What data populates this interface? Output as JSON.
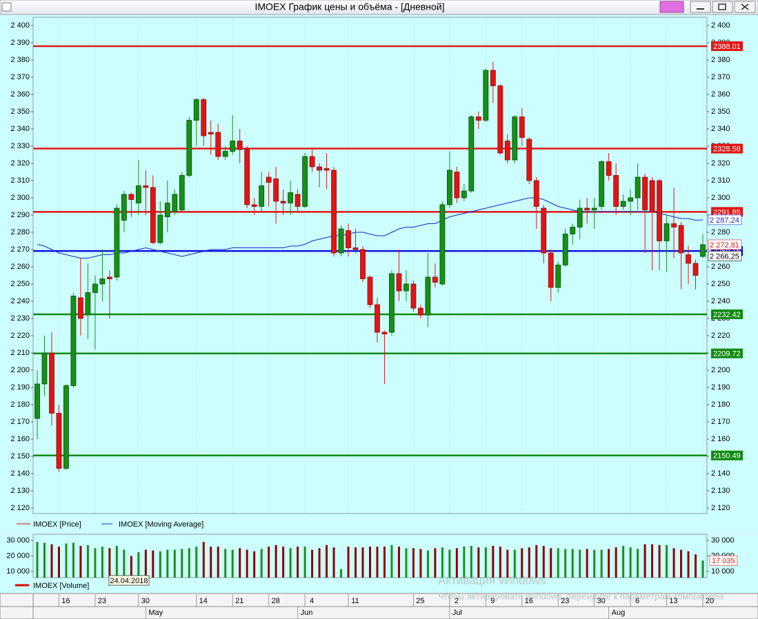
{
  "window_title": "IMOEX График цены и объёма - [Дневной]",
  "chart_data": [
    {
      "type": "candlestick",
      "categories": [
        null,
        null,
        null,
        "16",
        null,
        null,
        null,
        null,
        "23",
        null,
        null,
        null,
        null,
        null,
        "30",
        null,
        null,
        null,
        null,
        null,
        null,
        null,
        "14",
        null,
        null,
        null,
        null,
        "21",
        null,
        null,
        null,
        null,
        "28",
        null,
        null,
        null,
        null,
        "4",
        null,
        null,
        null,
        null,
        null,
        "11",
        null,
        null,
        null,
        null,
        null,
        null,
        null,
        null,
        "25",
        null,
        null,
        null,
        null,
        "2",
        null,
        null,
        null,
        null,
        "9",
        null,
        null,
        null,
        null,
        "16",
        null,
        null,
        null,
        null,
        "23",
        null,
        null,
        null,
        null,
        "30",
        null,
        null,
        null,
        null,
        "6",
        null,
        null,
        null,
        null,
        "13",
        null,
        null,
        null,
        null,
        "20"
      ],
      "months": [
        null,
        null,
        null,
        null,
        null,
        null,
        null,
        null,
        null,
        null,
        null,
        null,
        null,
        null,
        null,
        "May",
        null,
        null,
        null,
        null,
        null,
        null,
        null,
        null,
        null,
        null,
        null,
        null,
        null,
        null,
        null,
        null,
        null,
        null,
        null,
        null,
        "Jun",
        null,
        null,
        null,
        null,
        null,
        null,
        null,
        null,
        null,
        null,
        null,
        null,
        null,
        null,
        null,
        null,
        null,
        null,
        null,
        null,
        "Jul",
        null,
        null,
        null,
        null,
        null,
        null,
        null,
        null,
        null,
        null,
        null,
        null,
        null,
        null,
        null,
        null,
        null,
        null,
        null,
        null,
        null,
        "Aug",
        null,
        null,
        null,
        null,
        null,
        null,
        null,
        null,
        null,
        null,
        null,
        null,
        null
      ],
      "up_color": "#169016",
      "down_color": "#e41414",
      "series": [
        {
          "name": "IMOEX [Price]",
          "color": "#e00000",
          "open": [
            2172,
            2192,
            2210,
            2175,
            2143,
            2191,
            2242,
            2232,
            2245,
            2250,
            2254,
            2254,
            2287,
            2302,
            2297,
            2307,
            2306,
            2274,
            2289,
            2292,
            2293,
            2313,
            2345,
            2357,
            2338,
            2338,
            2324,
            2327,
            2333,
            2328,
            2296,
            2295,
            2312,
            2311,
            2298,
            2297,
            2302,
            2295,
            2324,
            2318,
            2317,
            2316,
            2268,
            2281,
            2271,
            2270,
            2254,
            2238,
            2222,
            2222,
            2256,
            2246,
            2250,
            2236,
            2232,
            2254,
            2250,
            2296,
            2315,
            2300,
            2304,
            2347,
            2345,
            2374,
            2365,
            2333,
            2322,
            2347,
            2334,
            2310,
            2294,
            2268,
            2248,
            2261,
            2279,
            2283,
            2294,
            2293,
            2295,
            2321,
            2313,
            2295,
            2298,
            2300,
            2312,
            2310,
            2310,
            2275,
            2285,
            2284,
            2267,
            2262,
            2266
          ],
          "high": [
            2200,
            2220,
            2222,
            2180,
            2192,
            2245,
            2265,
            2262,
            2255,
            2270,
            2258,
            2296,
            2304,
            2303,
            2322,
            2316,
            2313,
            2298,
            2310,
            2305,
            2315,
            2347,
            2358,
            2358,
            2345,
            2343,
            2330,
            2348,
            2340,
            2330,
            2300,
            2315,
            2315,
            2318,
            2305,
            2310,
            2305,
            2326,
            2328,
            2320,
            2326,
            2318,
            2284,
            2285,
            2282,
            2272,
            2255,
            2242,
            2223,
            2258,
            2270,
            2258,
            2252,
            2238,
            2268,
            2262,
            2298,
            2327,
            2318,
            2308,
            2348,
            2350,
            2375,
            2379,
            2366,
            2337,
            2348,
            2352,
            2335,
            2312,
            2296,
            2270,
            2263,
            2282,
            2285,
            2299,
            2300,
            2300,
            2322,
            2326,
            2320,
            2302,
            2305,
            2320,
            2314,
            2312,
            2311,
            2290,
            2306,
            2286,
            2272,
            2264,
            2279
          ],
          "low": [
            2160,
            2185,
            2168,
            2141,
            2142,
            2190,
            2220,
            2218,
            2212,
            2240,
            2230,
            2252,
            2280,
            2289,
            2290,
            2290,
            2273,
            2273,
            2280,
            2290,
            2292,
            2312,
            2330,
            2330,
            2325,
            2322,
            2322,
            2325,
            2320,
            2294,
            2290,
            2292,
            2295,
            2285,
            2290,
            2290,
            2292,
            2294,
            2315,
            2306,
            2305,
            2266,
            2266,
            2266,
            2268,
            2251,
            2236,
            2216,
            2192,
            2220,
            2240,
            2240,
            2234,
            2230,
            2225,
            2248,
            2249,
            2294,
            2297,
            2298,
            2303,
            2340,
            2344,
            2355,
            2325,
            2320,
            2320,
            2330,
            2308,
            2282,
            2262,
            2240,
            2245,
            2260,
            2273,
            2276,
            2285,
            2282,
            2293,
            2310,
            2290,
            2293,
            2290,
            2293,
            2268,
            2258,
            2258,
            2257,
            2265,
            2247,
            2250,
            2247,
            2265
          ],
          "close": [
            2192,
            2210,
            2175,
            2143,
            2191,
            2243,
            2230,
            2245,
            2250,
            2253,
            2253,
            2294,
            2302,
            2299,
            2307,
            2306,
            2274,
            2290,
            2297,
            2302,
            2313,
            2345,
            2357,
            2336,
            2337,
            2324,
            2327,
            2333,
            2328,
            2296,
            2295,
            2307,
            2309,
            2298,
            2297,
            2303,
            2295,
            2324,
            2318,
            2316,
            2316,
            2268,
            2282,
            2271,
            2270,
            2253,
            2238,
            2222,
            2221,
            2256,
            2246,
            2250,
            2236,
            2232,
            2254,
            2251,
            2296,
            2316,
            2300,
            2304,
            2347,
            2345,
            2374,
            2365,
            2326,
            2322,
            2347,
            2335,
            2310,
            2295,
            2268,
            2248,
            2261,
            2279,
            2283,
            2294,
            2293,
            2294,
            2321,
            2313,
            2295,
            2298,
            2300,
            2312,
            2293,
            2292,
            2275,
            2285,
            2283,
            2268,
            2262,
            2255,
            2272.81
          ]
        },
        {
          "name": "IMOEX [Moving Average]",
          "color": "#1428c8",
          "values": [
            2273,
            2272,
            2270,
            2268,
            2267,
            2266,
            2265,
            2265,
            2266,
            2267,
            2267,
            2268,
            2268,
            2269,
            2270,
            2271,
            2270,
            2269,
            2268,
            2267,
            2266,
            2267,
            2268,
            2269,
            2270,
            2270,
            2270,
            2271,
            2271,
            2271,
            2271,
            2271,
            2271,
            2271,
            2271,
            2272,
            2272,
            2273,
            2275,
            2276,
            2277,
            2278,
            2278,
            2279,
            2280,
            2280,
            2279,
            2278,
            2278,
            2280,
            2282,
            2283,
            2283,
            2284,
            2285,
            2285,
            2287,
            2289,
            2290,
            2291,
            2292,
            2293,
            2294,
            2295,
            2296,
            2297,
            2298,
            2299,
            2300,
            2300,
            2299,
            2297,
            2295,
            2294,
            2293,
            2292,
            2292,
            2292,
            2292,
            2292,
            2292,
            2292,
            2292,
            2292,
            2292,
            2292,
            2291,
            2290,
            2289,
            2288,
            2288,
            2287,
            2287.24
          ]
        }
      ],
      "levels": [
        {
          "value": 2388.01,
          "color": "#e41414"
        },
        {
          "value": 2328.58,
          "color": "#e41414"
        },
        {
          "value": 2291.85,
          "color": "#e41414"
        },
        {
          "value": 2269.15,
          "color": "#1010e0"
        },
        {
          "value": 2232.42,
          "color": "#108a10"
        },
        {
          "value": 2209.72,
          "color": "#108a10"
        },
        {
          "value": 2150.49,
          "color": "#108a10"
        }
      ],
      "markers": [
        {
          "value": 2287.24,
          "label": "2 287,24",
          "color": "#1428c8"
        },
        {
          "value": 2272.81,
          "label": "2 272,81",
          "color": "#e41414"
        },
        {
          "value": 2266.25,
          "label": "2 266,25",
          "color": "#000000"
        }
      ],
      "ylim": [
        2116.8,
        2404.8
      ],
      "yticks": [
        {
          "value": 2120,
          "label": "2 120"
        },
        {
          "value": 2130,
          "label": "2 130"
        },
        {
          "value": 2140,
          "label": "2 140"
        },
        {
          "value": 2150,
          "label": "2 150"
        },
        {
          "value": 2160,
          "label": "2 160"
        },
        {
          "value": 2170,
          "label": "2 170"
        },
        {
          "value": 2180,
          "label": "2 180"
        },
        {
          "value": 2190,
          "label": "2 190"
        },
        {
          "value": 2200,
          "label": "2 200"
        },
        {
          "value": 2210,
          "label": "2 210"
        },
        {
          "value": 2220,
          "label": "2 220"
        },
        {
          "value": 2230,
          "label": "2 230"
        },
        {
          "value": 2240,
          "label": "2 240"
        },
        {
          "value": 2250,
          "label": "2 250"
        },
        {
          "value": 2260,
          "label": "2 260"
        },
        {
          "value": 2270,
          "label": "2 270"
        },
        {
          "value": 2280,
          "label": "2 280"
        },
        {
          "value": 2290,
          "label": "2 290"
        },
        {
          "value": 2300,
          "label": "2 300"
        },
        {
          "value": 2310,
          "label": "2 310"
        },
        {
          "value": 2320,
          "label": "2 320"
        },
        {
          "value": 2330,
          "label": "2 330"
        },
        {
          "value": 2340,
          "label": "2 340"
        },
        {
          "value": 2350,
          "label": "2 350"
        },
        {
          "value": 2360,
          "label": "2 360"
        },
        {
          "value": 2370,
          "label": "2 370"
        },
        {
          "value": 2380,
          "label": "2 380"
        },
        {
          "value": 2390,
          "label": "2 390"
        },
        {
          "value": 2400,
          "label": "2 400"
        }
      ]
    },
    {
      "type": "bar",
      "series": [
        {
          "name": "IMOEX [Volume]",
          "color": "#e00000",
          "values": [
            29000,
            28500,
            27500,
            26000,
            28000,
            28500,
            26500,
            27000,
            25000,
            26000,
            25000,
            26500,
            24000,
            20000,
            22500,
            24000,
            23500,
            23000,
            24000,
            24000,
            24500,
            25000,
            26000,
            29000,
            26000,
            26000,
            24500,
            24000,
            25000,
            24000,
            23000,
            24500,
            26000,
            27000,
            26000,
            25000,
            26000,
            26000,
            24000,
            25000,
            27000,
            25500,
            11500,
            26000,
            25500,
            25500,
            26000,
            26000,
            26000,
            27000,
            26000,
            25000,
            25000,
            24500,
            23500,
            25000,
            25500,
            24000,
            25000,
            26000,
            26500,
            25500,
            25500,
            26500,
            26000,
            24000,
            24000,
            25000,
            25500,
            27000,
            26500,
            25000,
            25000,
            24500,
            24500,
            24000,
            24500,
            24000,
            24000,
            24500,
            25500,
            26500,
            25500,
            24500,
            27500,
            27500,
            27000,
            27000,
            25000,
            24000,
            23000,
            21000,
            17035
          ]
        }
      ],
      "up_color": "#1e8c1e",
      "down_color": "#8b0000",
      "last": {
        "value": 17035,
        "label": "17 035"
      },
      "cursor_date": "24.04.2018",
      "ylim": [
        6000,
        34000
      ],
      "yticks": [
        {
          "value": 10000,
          "label": "10 000"
        },
        {
          "value": 20000,
          "label": "20 000"
        },
        {
          "value": 30000,
          "label": "30 000"
        }
      ]
    }
  ],
  "watermark": {
    "title": "Активация Windows",
    "text": "Чтобы активировать Windows, перейдите к параметрам компьютера."
  }
}
